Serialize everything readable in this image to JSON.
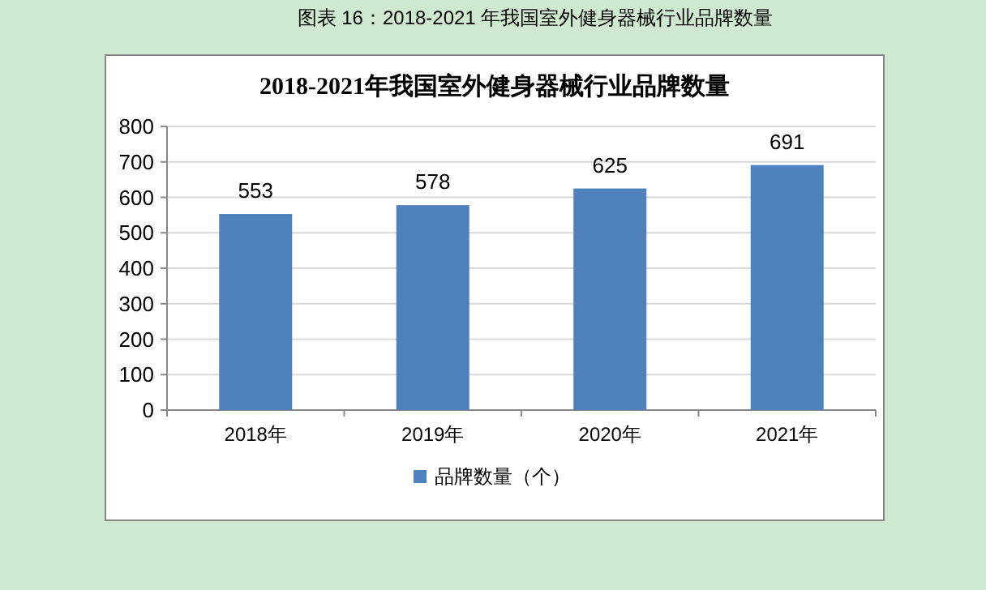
{
  "chart_data": {
    "type": "bar",
    "title": "2018-2021年我国室外健身器械行业品牌数量",
    "categories": [
      "2018年",
      "2019年",
      "2020年",
      "2021年"
    ],
    "series": [
      {
        "name": "品牌数量（个）",
        "color": "#4f81bd",
        "values": [
          553,
          578,
          625,
          691
        ]
      }
    ],
    "ylim": [
      0,
      800
    ],
    "yticks": [
      0,
      100,
      200,
      300,
      400,
      500,
      600,
      700,
      800
    ],
    "grid": "y",
    "data_labels": true,
    "legend": "bottom",
    "annotations": [
      "图表 16：2018-2021 年我国室外健身器械行业品牌数量"
    ]
  }
}
